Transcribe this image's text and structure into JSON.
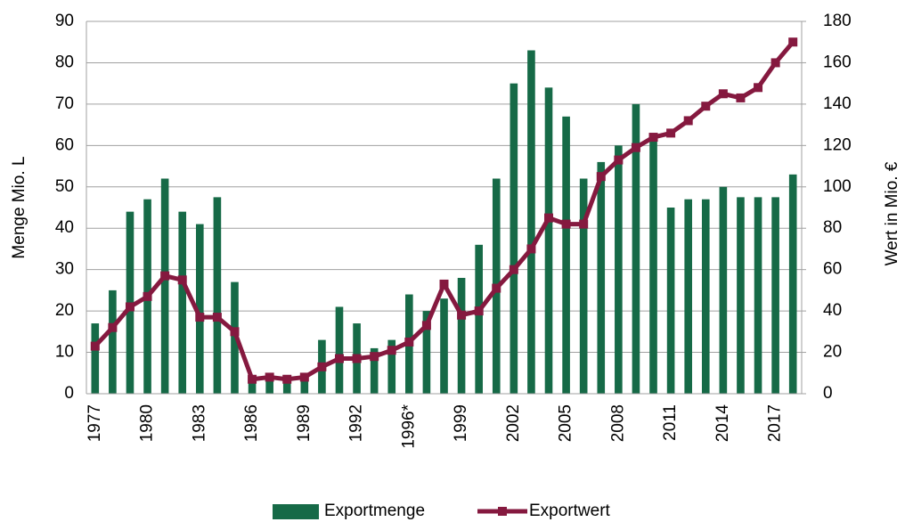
{
  "chart_data": {
    "type": "bar-line",
    "categories": [
      "1977",
      null,
      null,
      "1980",
      null,
      null,
      "1983",
      null,
      null,
      "1986",
      null,
      null,
      "1989",
      null,
      null,
      "1992",
      null,
      null,
      "1996*",
      null,
      null,
      "1999",
      null,
      null,
      "2002",
      null,
      null,
      "2005",
      null,
      null,
      "2008",
      null,
      null,
      "2011",
      null,
      null,
      "2014",
      null,
      null,
      "2017",
      null
    ],
    "series": [
      {
        "name": "Exportmenge",
        "color": "#166a47",
        "type": "bar",
        "values": [
          17,
          25,
          44,
          47,
          52,
          44,
          41,
          47.5,
          27,
          4,
          4,
          3.5,
          4,
          13,
          21,
          17,
          11,
          13,
          24,
          20,
          23,
          28,
          36,
          52,
          75,
          83,
          74,
          67,
          52,
          56,
          60,
          70,
          62,
          45,
          47,
          47,
          50,
          47.5,
          47.5,
          47.5,
          53
        ]
      },
      {
        "name": "Exportwert",
        "color": "#85193f",
        "type": "line",
        "axis": "y2",
        "values": [
          23,
          32,
          42,
          47,
          57,
          55,
          37,
          37,
          30,
          7,
          8,
          7,
          8,
          13,
          17,
          17,
          18,
          21,
          25,
          33,
          53,
          38,
          40,
          51,
          60,
          70,
          85,
          82,
          82,
          105,
          113,
          119,
          124,
          126,
          132,
          139,
          145,
          143,
          148,
          160,
          170
        ]
      }
    ],
    "ylabel": "Menge Mio. L",
    "y2label": "Wert in Mio. €",
    "ylim": [
      0,
      90
    ],
    "yticks": [
      0,
      10,
      20,
      30,
      40,
      50,
      60,
      70,
      80,
      90
    ],
    "y2lim": [
      0,
      180
    ],
    "y2ticks": [
      0,
      20,
      40,
      60,
      80,
      100,
      120,
      140,
      160,
      180
    ],
    "grid": true,
    "legend": "bottom"
  }
}
